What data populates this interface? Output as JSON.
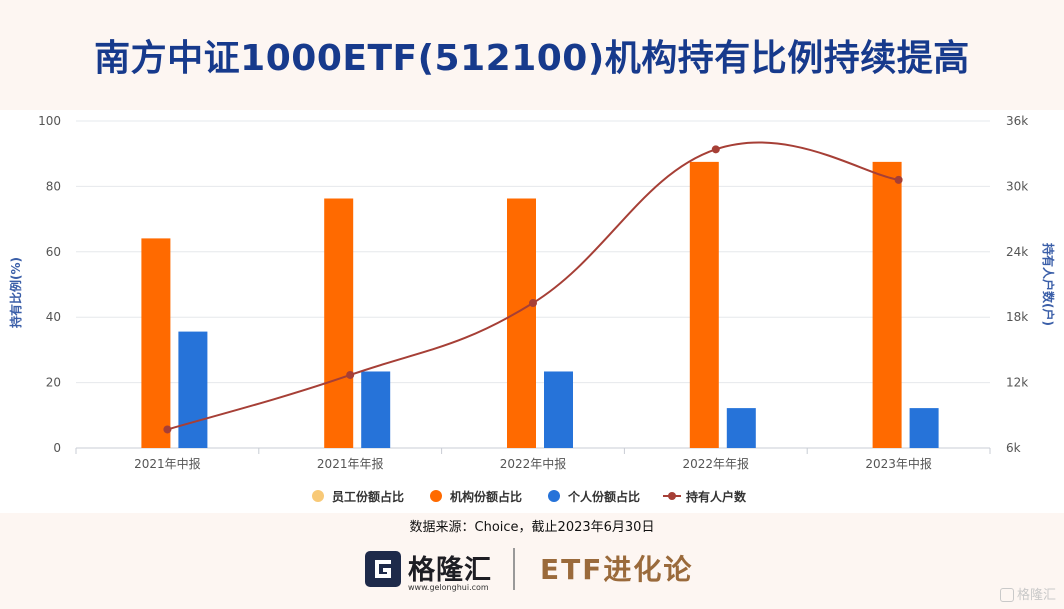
{
  "title": "南方中证1000ETF(512100)机构持有比例持续提高",
  "source": "数据来源：Choice，截止2023年6月30日",
  "footer": {
    "brand": "格隆汇",
    "brand_url": "www.gelonghui.com",
    "column": "ETF进化论"
  },
  "watermark": "格隆汇",
  "colors": {
    "employee": "#f8c977",
    "institution": "#ff6a00",
    "individual": "#2673d9",
    "holders": "#a63f36",
    "title": "#173a8c"
  },
  "chart_data": {
    "type": "bar",
    "categories": [
      "2021年中报",
      "2021年年报",
      "2022年中报",
      "2022年年报",
      "2023年中报"
    ],
    "series": [
      {
        "name": "员工份额占比",
        "type": "bar",
        "axis": "left",
        "values": [
          0,
          0,
          0,
          0,
          0
        ]
      },
      {
        "name": "机构份额占比",
        "type": "bar",
        "axis": "left",
        "values": [
          64.1,
          76.3,
          76.3,
          87.5,
          87.5
        ]
      },
      {
        "name": "个人份额占比",
        "type": "bar",
        "axis": "left",
        "values": [
          35.6,
          23.4,
          23.4,
          12.2,
          12.2
        ]
      },
      {
        "name": "持有人户数",
        "type": "line",
        "axis": "right",
        "values": [
          7700,
          12700,
          19300,
          33400,
          30600
        ]
      }
    ],
    "ylabel": "持有比例(%)",
    "y2label": "持有人户数(户)",
    "ylim": [
      0,
      100
    ],
    "y2lim": [
      6000,
      36000
    ],
    "yticks": [
      "0",
      "20",
      "40",
      "60",
      "80",
      "100"
    ],
    "y2ticks": [
      "6k",
      "12k",
      "18k",
      "24k",
      "30k",
      "36k"
    ],
    "grid": true,
    "legend_position": "bottom"
  }
}
